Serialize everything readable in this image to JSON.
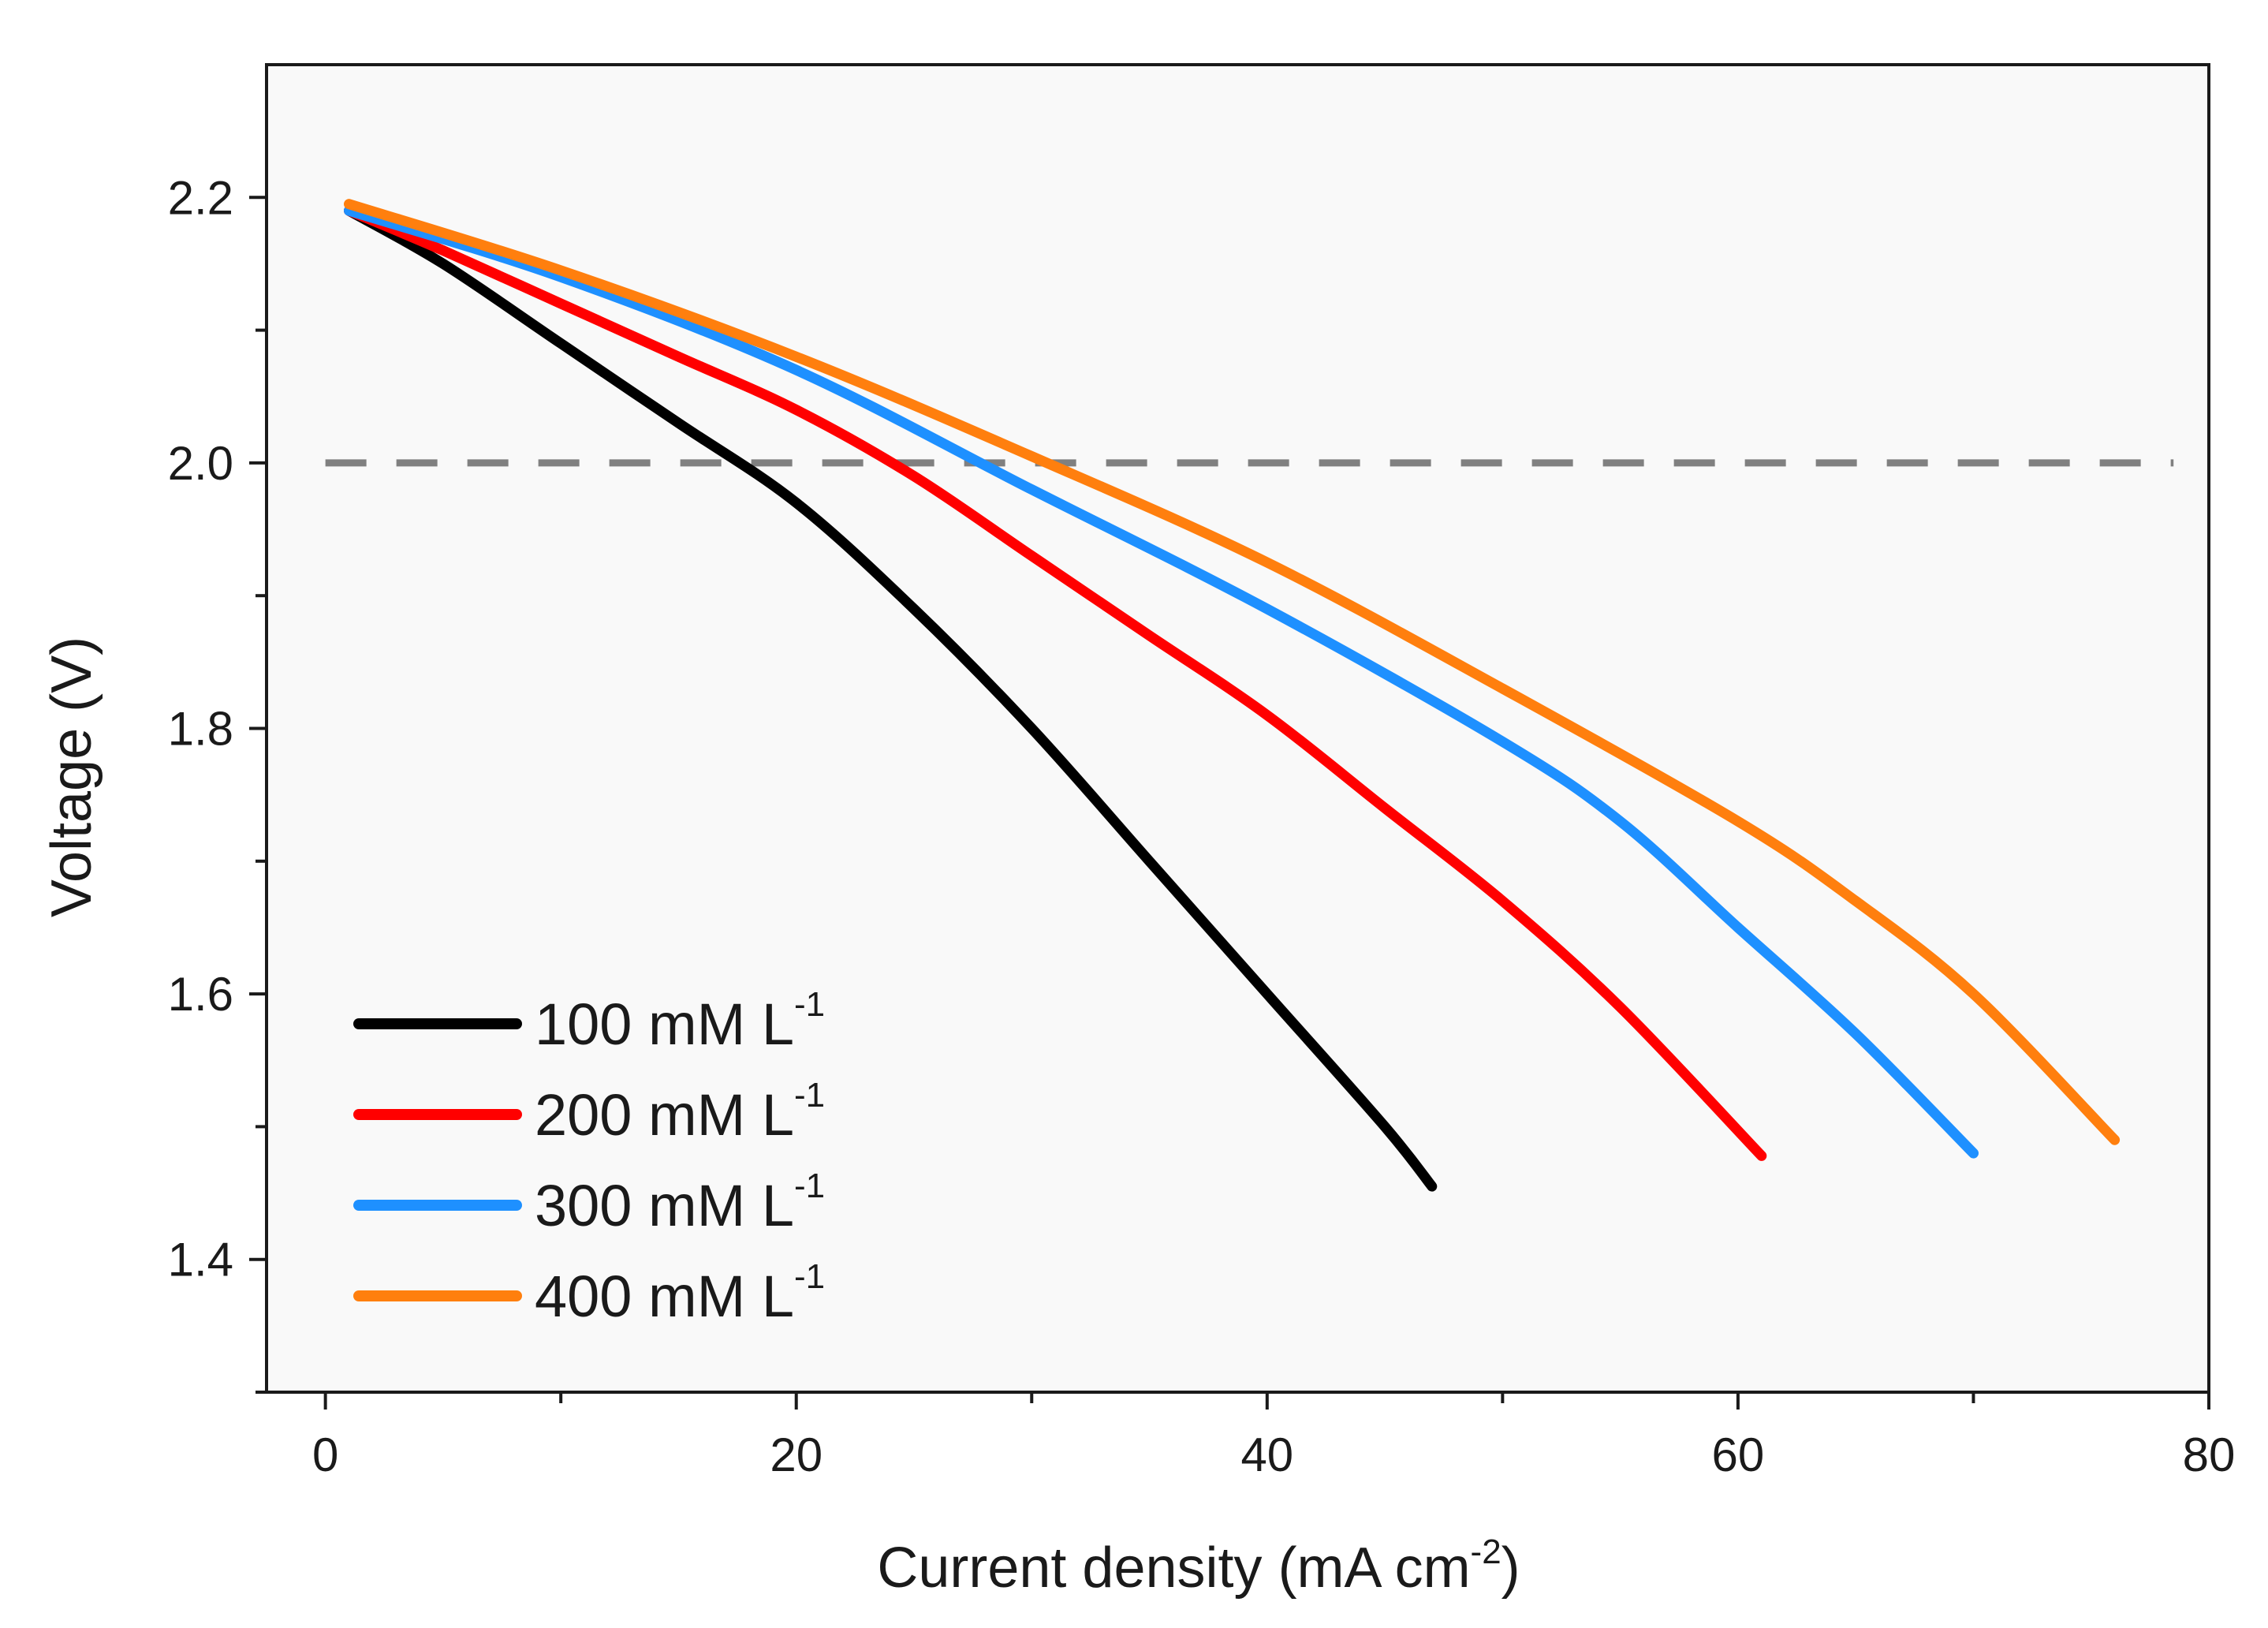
{
  "chart_data": {
    "type": "line",
    "title": "",
    "xlabel": "Current density (mA cm",
    "xlabel_sup": "-2",
    "xlabel_suffix": ")",
    "ylabel": "Voltage (V)",
    "xlim": [
      -2.5,
      80
    ],
    "ylim": [
      1.3,
      2.3
    ],
    "x_ticks": [
      "0",
      "20",
      "40",
      "60",
      "80"
    ],
    "x_tick_values": [
      0,
      20,
      40,
      60,
      80
    ],
    "x_minor_tick_values": [
      10,
      30,
      50,
      70
    ],
    "y_ticks": [
      "1.4",
      "1.6",
      "1.8",
      "2.0",
      "2.2"
    ],
    "y_tick_values": [
      1.4,
      1.6,
      1.8,
      2.0,
      2.2
    ],
    "y_minor_tick_values": [
      1.3,
      1.5,
      1.7,
      1.9,
      2.1
    ],
    "reference_line": {
      "y": 2.0,
      "x_range": [
        0,
        78.5
      ],
      "style": "dashed",
      "color": "#808080"
    },
    "legend_position": "bottom-left",
    "series": [
      {
        "name": "100 mM L",
        "sup": "-1",
        "color": "#000000",
        "x": [
          1,
          5,
          10,
          15,
          20,
          25,
          30,
          35,
          40,
          45,
          47
        ],
        "y": [
          2.19,
          2.15,
          2.09,
          2.03,
          1.97,
          1.89,
          1.8,
          1.7,
          1.6,
          1.5,
          1.455
        ]
      },
      {
        "name": "200 mM L",
        "sup": "-1",
        "color": "#ff0000",
        "x": [
          1,
          5,
          10,
          15,
          20,
          25,
          30,
          35,
          40,
          45,
          50,
          55,
          61
        ],
        "y": [
          2.19,
          2.16,
          2.12,
          2.08,
          2.04,
          1.99,
          1.93,
          1.87,
          1.81,
          1.74,
          1.67,
          1.59,
          1.478
        ]
      },
      {
        "name": "300 mM L",
        "sup": "-1",
        "color": "#1e90ff",
        "x": [
          1,
          10,
          20,
          30,
          40,
          50,
          55,
          60,
          65,
          70
        ],
        "y": [
          2.19,
          2.14,
          2.07,
          1.98,
          1.89,
          1.79,
          1.73,
          1.65,
          1.57,
          1.48
        ]
      },
      {
        "name": "400 mM L",
        "sup": "-1",
        "color": "#ff7f0e",
        "x": [
          1,
          10,
          20,
          30,
          40,
          50,
          60,
          65,
          70,
          76
        ],
        "y": [
          2.195,
          2.145,
          2.08,
          2.005,
          1.925,
          1.83,
          1.73,
          1.67,
          1.6,
          1.49
        ]
      }
    ]
  }
}
